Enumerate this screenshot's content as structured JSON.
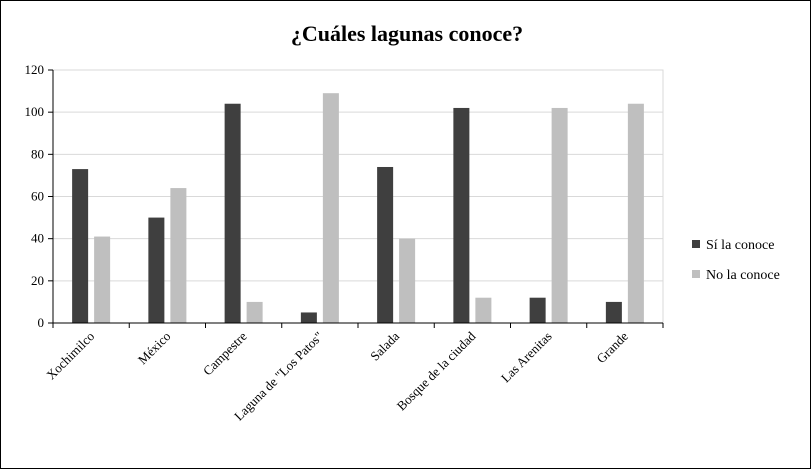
{
  "chart_data": {
    "type": "bar",
    "title": "¿Cuáles lagunas conoce?",
    "categories": [
      "Xochimilco",
      "México",
      "Campestre",
      "Laguna de \"Los Patos\"",
      "Salada",
      "Bosque de la ciudad",
      "Las Arenitas",
      "Grande"
    ],
    "series": [
      {
        "name": "Sí la conoce",
        "values": [
          73,
          50,
          104,
          5,
          74,
          102,
          12,
          10
        ],
        "color": "#3f3f3f"
      },
      {
        "name": "No la conoce",
        "values": [
          41,
          64,
          10,
          109,
          40,
          12,
          102,
          104
        ],
        "color": "#bfbfbf"
      }
    ],
    "ylim": [
      0,
      120
    ],
    "yticks": [
      0,
      20,
      40,
      60,
      80,
      100,
      120
    ],
    "grid": true,
    "legend_position": "right"
  }
}
